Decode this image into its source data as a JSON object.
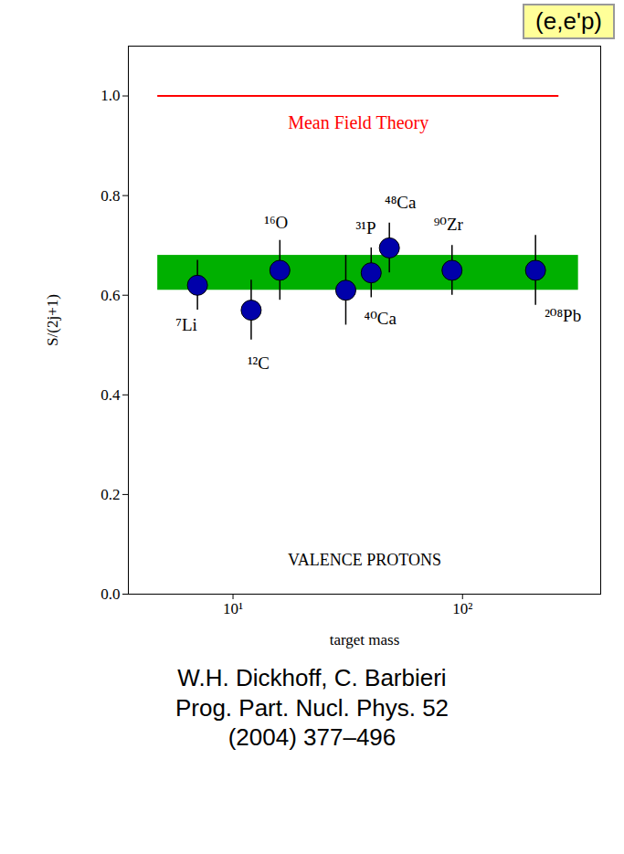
{
  "chart_data": {
    "type": "scatter",
    "title": "(e,e'p)",
    "x_label": "target mass",
    "y_label": "S/(2j+1)",
    "log": "x",
    "grid": false,
    "xlim": [
      3.5,
      400
    ],
    "ylim": [
      0,
      1.1
    ],
    "xticks": [
      {
        "value": 10,
        "label": "10¹"
      },
      {
        "value": 100,
        "label": "10²"
      }
    ],
    "yticks": [
      {
        "value": 0,
        "label": "0.0"
      },
      0.2,
      0.4,
      0.6,
      0.8,
      {
        "value": 1,
        "label": "1.0"
      }
    ],
    "x": [
      7,
      12,
      16,
      31,
      40,
      48,
      90,
      208
    ],
    "values": [
      0.62,
      0.57,
      0.65,
      0.61,
      0.645,
      0.695,
      0.65,
      0.65
    ],
    "errors": [
      0.05,
      0.06,
      0.06,
      0.07,
      0.05,
      0.05,
      0.05,
      0.07
    ],
    "point_labels": [
      "⁷Li",
      "¹²C",
      "¹⁶O",
      "³¹P",
      "⁴⁰Ca",
      "⁴⁸Ca",
      "⁹⁰Zr",
      "²⁰⁸Pb"
    ],
    "color": "#0000aa",
    "marker": "circle",
    "band": {
      "x": [
        4.7,
        320
      ],
      "y": [
        0.61,
        0.68
      ],
      "color": "#00b000"
    },
    "reference_line": {
      "y": 1.0,
      "x": [
        4.7,
        263
      ],
      "label": "Mean Field Theory",
      "color": "#ff0000"
    },
    "annotations": [
      "VALENCE PROTONS"
    ],
    "caption": [
      "W.H. Dickhoff, C. Barbieri",
      "Prog. Part. Nucl. Phys. 52",
      "(2004) 377–496"
    ]
  }
}
